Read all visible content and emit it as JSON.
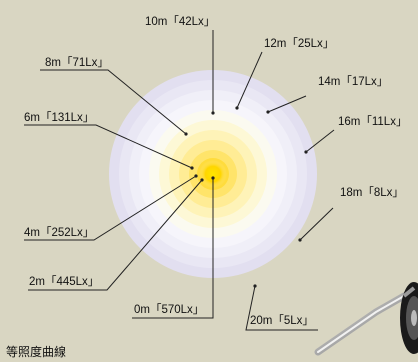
{
  "caption": "等照度曲線",
  "colors": {
    "background": "#d9d6c2",
    "center_glow": "#ffe600",
    "outer_ring": "#e2dff0",
    "line": "#222222"
  },
  "labels": [
    {
      "text": "0m「570Lx」"
    },
    {
      "text": "2m「445Lx」"
    },
    {
      "text": "4m「252Lx」"
    },
    {
      "text": "6m「131Lx」"
    },
    {
      "text": "8m「71Lx」"
    },
    {
      "text": "10m「42Lx」"
    },
    {
      "text": "12m「25Lx」"
    },
    {
      "text": "14m「17Lx」"
    },
    {
      "text": "16m「11Lx」"
    },
    {
      "text": "18m「8Lx」"
    },
    {
      "text": "20m「5Lx」"
    }
  ]
}
